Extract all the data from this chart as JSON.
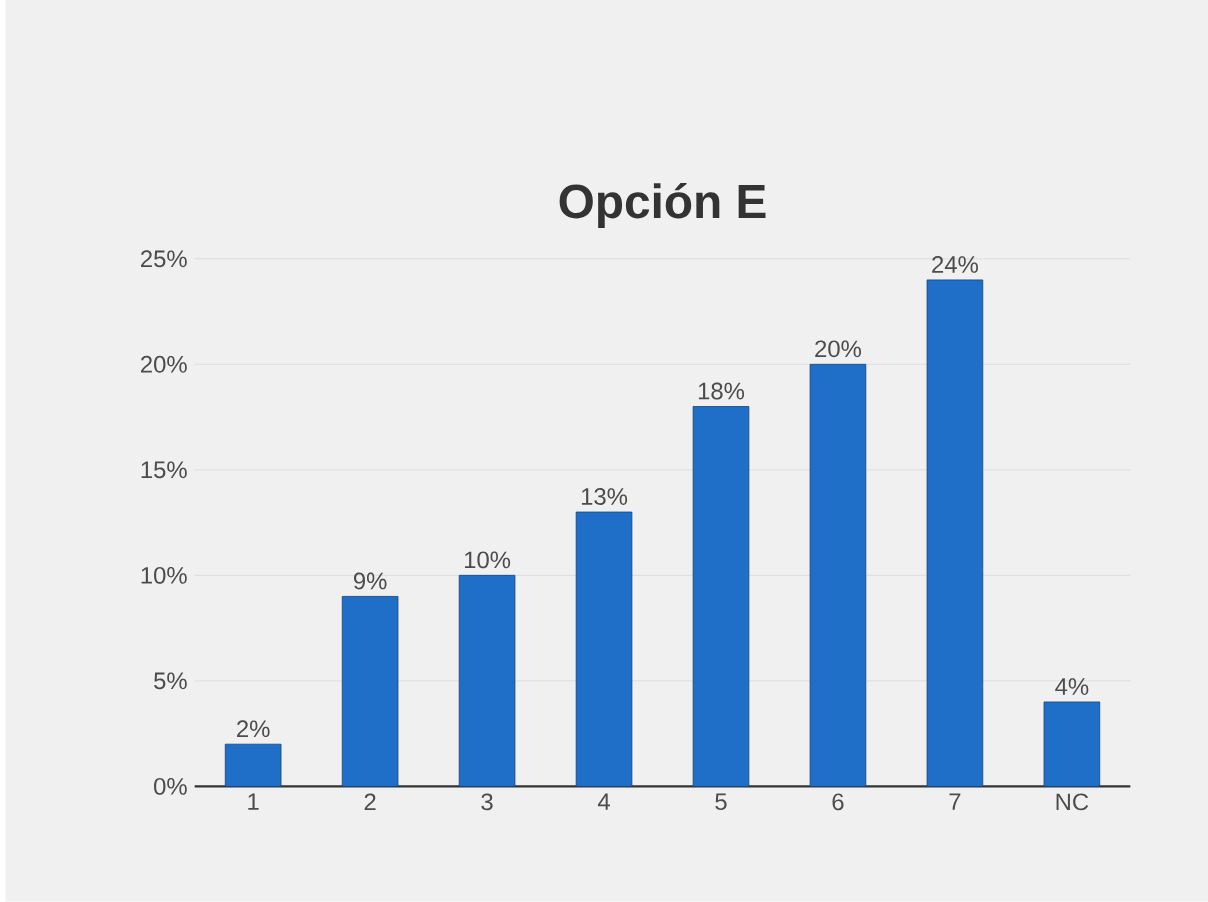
{
  "chart_data": {
    "type": "bar",
    "title": "Opción E",
    "categories": [
      "1",
      "2",
      "3",
      "4",
      "5",
      "6",
      "7",
      "NC"
    ],
    "values": [
      2,
      9,
      10,
      13,
      18,
      20,
      24,
      4
    ],
    "value_labels": [
      "2%",
      "9%",
      "10%",
      "13%",
      "18%",
      "20%",
      "24%",
      "4%"
    ],
    "color": "#1f6fc9",
    "ylim": [
      0,
      25
    ],
    "yticks": [
      {
        "value": 0,
        "label": "0%"
      },
      {
        "value": 5,
        "label": "5%"
      },
      {
        "value": 10,
        "label": "10%"
      },
      {
        "value": 15,
        "label": "15%"
      },
      {
        "value": 20,
        "label": "20%"
      },
      {
        "value": 25,
        "label": "25%"
      }
    ],
    "grid": "y"
  }
}
